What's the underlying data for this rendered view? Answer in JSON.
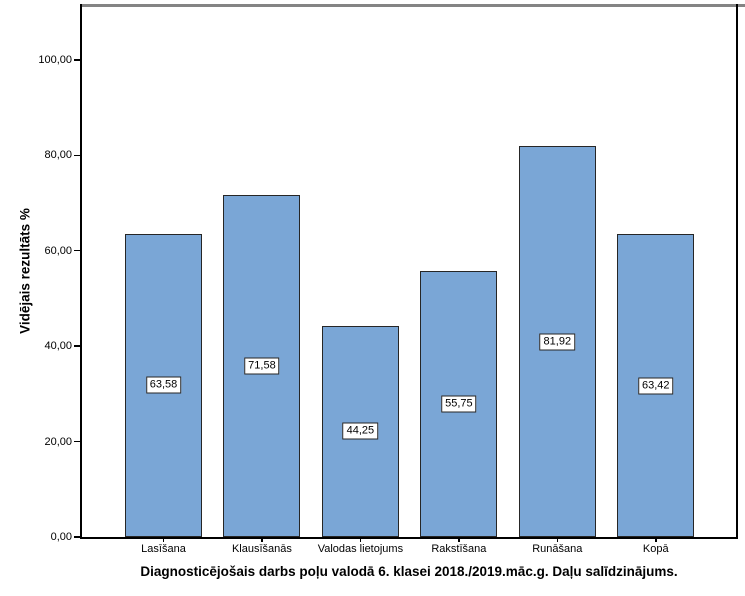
{
  "chart_data": {
    "type": "bar",
    "title": "Diagnosticējošais darbs poļu valodā 6. klasei 2018./2019.māc.g. Daļu salīdzinājums.",
    "ylabel": "Vidējais rezultāts %",
    "xlabel": "",
    "categories": [
      "Lasīšana",
      "Klausīšanās",
      "Valodas lietojums",
      "Rakstīšana",
      "Runāšana",
      "Kopā"
    ],
    "values": [
      63.58,
      71.58,
      44.25,
      55.75,
      81.92,
      63.42
    ],
    "value_labels": [
      "63,58",
      "71,58",
      "44,25",
      "55,75",
      "81,92",
      "63,42"
    ],
    "value_label_position": "middle",
    "ylim": [
      0,
      111.5
    ],
    "yticks": [
      0,
      20,
      40,
      60,
      80,
      100
    ],
    "ytick_labels": [
      "0,00",
      "20,00",
      "40,00",
      "60,00",
      "80,00",
      "100,00"
    ],
    "grid": false,
    "legend": false,
    "colors": {
      "bar_fill": "#7AA6D6",
      "bar_border": "#262626",
      "axis": "#000000",
      "frame_top": "#848484",
      "background": "#FFFFFF",
      "value_label_bg": "#FFFFFF",
      "value_label_border": "#262626"
    }
  }
}
